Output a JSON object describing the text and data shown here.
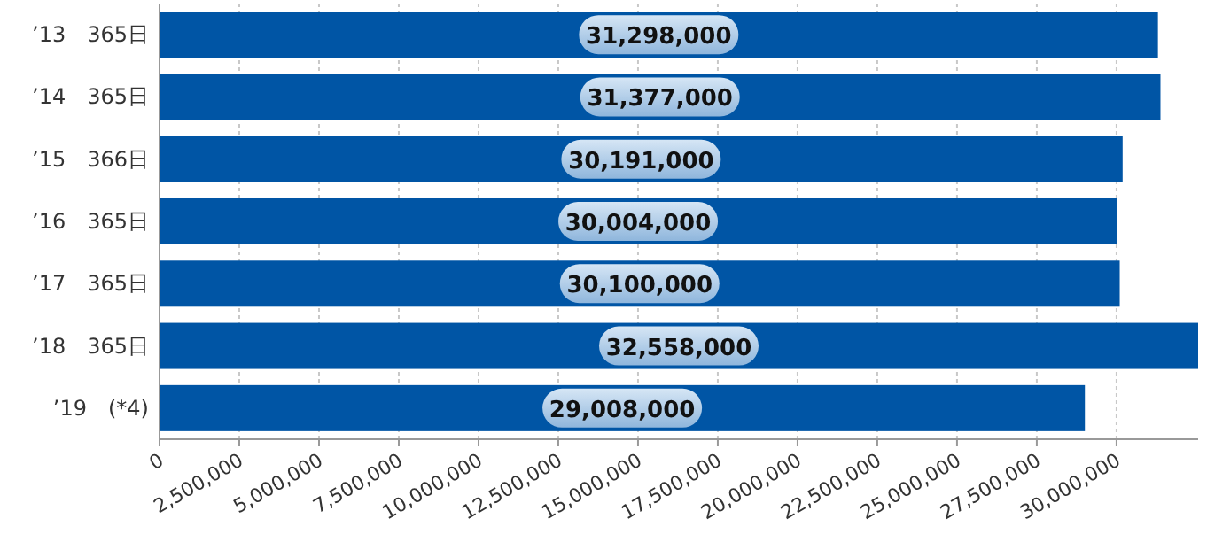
{
  "chart_data": {
    "type": "bar",
    "orientation": "horizontal",
    "categories": [
      "’13　365日",
      "’14　365日",
      "’15　366日",
      "’16　365日",
      "’17　365日",
      "’18　365日",
      "’19　(*4)"
    ],
    "values": [
      31298000,
      31377000,
      30191000,
      30004000,
      30100000,
      32558000,
      29008000
    ],
    "color": "#0055a5",
    "xlim": [
      0,
      32558000
    ],
    "xticks": [
      {
        "value": 0,
        "label": "0"
      },
      {
        "value": 2500000,
        "label": "2,500,000"
      },
      {
        "value": 5000000,
        "label": "5,000,000"
      },
      {
        "value": 7500000,
        "label": "7,500,000"
      },
      {
        "value": 10000000,
        "label": "10,000,000"
      },
      {
        "value": 12500000,
        "label": "12,500,000"
      },
      {
        "value": 15000000,
        "label": "15,000,000"
      },
      {
        "value": 17500000,
        "label": "17,500,000"
      },
      {
        "value": 20000000,
        "label": "20,000,000"
      },
      {
        "value": 22500000,
        "label": "22,500,000"
      },
      {
        "value": 25000000,
        "label": "25,000,000"
      },
      {
        "value": 27500000,
        "label": "27,500,000"
      },
      {
        "value": 30000000,
        "label": "30,000,000"
      }
    ],
    "grid": "x",
    "value_labels": [
      "31,298,000",
      "31,377,000",
      "30,191,000",
      "30,004,000",
      "30,100,000",
      "32,558,000",
      "29,008,000"
    ]
  }
}
